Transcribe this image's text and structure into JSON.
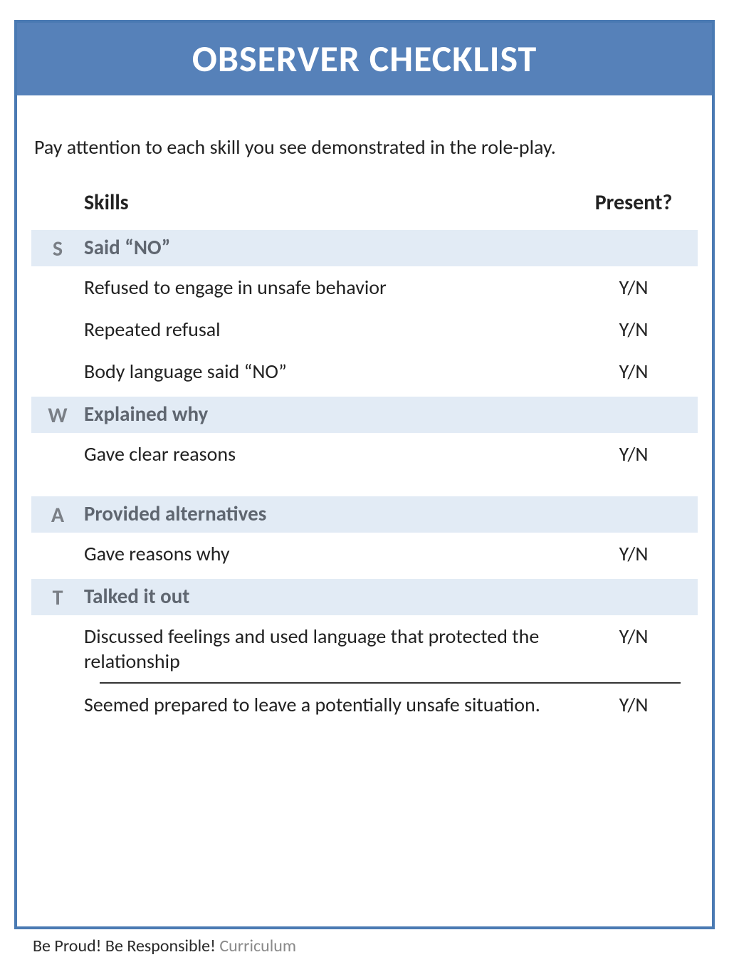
{
  "title": "OBSERVER CHECKLIST",
  "instruction": "Pay attention to each skill you see demonstrated in the role-play.",
  "table": {
    "headers": {
      "skills": "Skills",
      "present": "Present?"
    },
    "yn": "Y/N",
    "groups": [
      {
        "letter": "S",
        "label": "Said “NO”",
        "items": [
          "Refused to engage in unsafe behavior",
          "Repeated refusal",
          "Body language said “NO”"
        ]
      },
      {
        "letter": "W",
        "label": "Explained why",
        "items": [
          "Gave clear reasons"
        ]
      },
      {
        "letter": "A",
        "label": "Provided alternatives",
        "items": [
          "Gave reasons why"
        ]
      },
      {
        "letter": "T",
        "label": "Talked it out",
        "items": [
          "Discussed feelings and used language that protected the relationship",
          "Seemed prepared to leave a potentially unsafe situation."
        ]
      }
    ]
  },
  "footer": {
    "bold": "Be Proud! Be Responsible! ",
    "light": "Curriculum"
  },
  "colors": {
    "frame_border": "#4a7ab3",
    "title_bg": "#5681b9",
    "title_text": "#ffffff",
    "group_bg": "#e2ebf5",
    "group_text": "#5f6670",
    "letter_text": "#7a7f86",
    "body_text": "#222222",
    "footer_light": "#8a8a8a"
  }
}
